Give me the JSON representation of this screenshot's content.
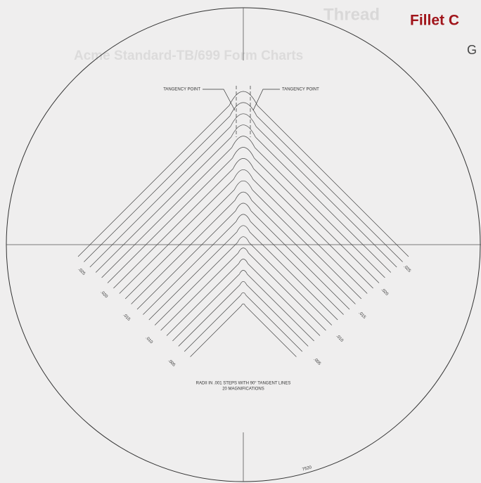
{
  "header": {
    "title": "Fillet C",
    "subtitle": "G"
  },
  "background_texts": [
    "Thread",
    "Acme Standard-TB/699 Form Charts"
  ],
  "diagram": {
    "tangency_left": "TANGENCY POINT",
    "tangency_right": "TANGENCY POINT",
    "left_labels": [
      ".025",
      ".020",
      ".015",
      ".010",
      ".005"
    ],
    "right_labels": [
      ".025",
      ".020",
      ".015",
      ".010",
      ".005"
    ],
    "note_line1": "RADII IN .001 STEPS WITH 90° TANGENT LINES",
    "note_line2": "20 MAGNIFICATIONS",
    "chart_number": "7520"
  }
}
